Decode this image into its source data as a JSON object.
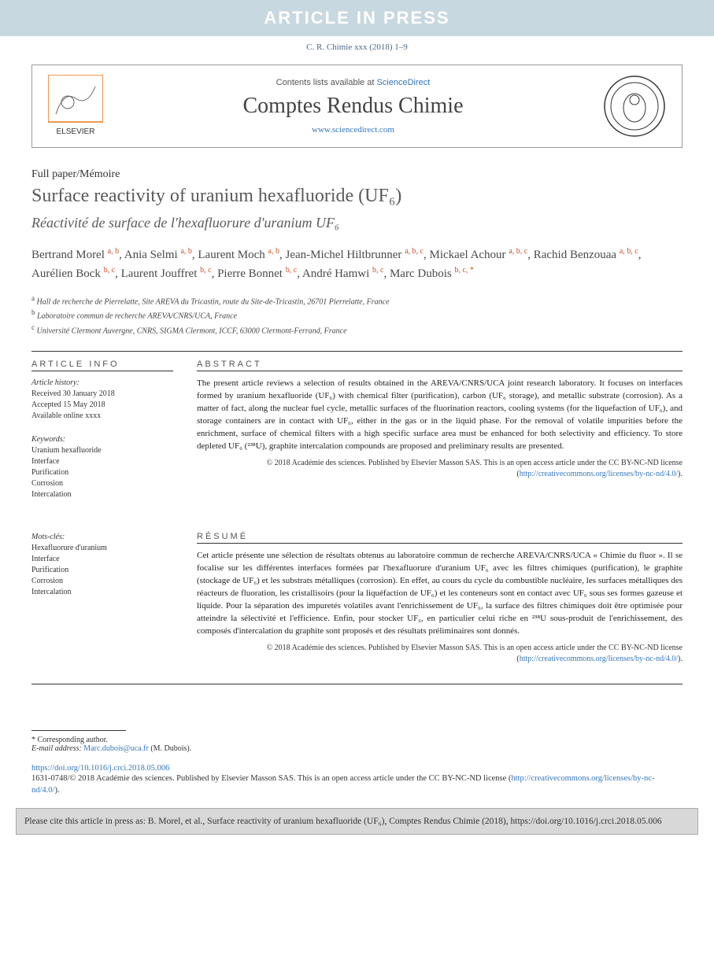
{
  "banner": "ARTICLE IN PRESS",
  "citation_line": "C. R. Chimie xxx (2018) 1–9",
  "header": {
    "contents_prefix": "Contents lists available at ",
    "contents_link": "ScienceDirect",
    "journal_name": "Comptes Rendus Chimie",
    "url": "www.sciencedirect.com"
  },
  "article_type": "Full paper/Mémoire",
  "title_en": "Surface reactivity of uranium hexafluoride (UF₆)",
  "title_fr": "Réactivité de surface de l'hexafluorure d'uranium UF₆",
  "authors": [
    {
      "name": "Bertrand Morel",
      "aff": "a, b"
    },
    {
      "name": "Ania Selmi",
      "aff": "a, b"
    },
    {
      "name": "Laurent Moch",
      "aff": "a, b"
    },
    {
      "name": "Jean-Michel Hiltbrunner",
      "aff": "a, b, c"
    },
    {
      "name": "Mickael Achour",
      "aff": "a, b, c"
    },
    {
      "name": "Rachid Benzouaa",
      "aff": "a, b, c"
    },
    {
      "name": "Aurélien Bock",
      "aff": "b, c"
    },
    {
      "name": "Laurent Jouffret",
      "aff": "b, c"
    },
    {
      "name": "Pierre Bonnet",
      "aff": "b, c"
    },
    {
      "name": "André Hamwi",
      "aff": "b, c"
    },
    {
      "name": "Marc Dubois",
      "aff": "b, c, *"
    }
  ],
  "affiliations": [
    {
      "marker": "a",
      "text": "Hall de recherche de Pierrelatte, Site AREVA du Tricastin, route du Site-de-Tricastin, 26701 Pierrelatte, France"
    },
    {
      "marker": "b",
      "text": "Laboratoire commun de recherche AREVA/CNRS/UCA, France"
    },
    {
      "marker": "c",
      "text": "Université Clermont Auvergne, CNRS, SIGMA Clermont, ICCF, 63000 Clermont-Ferrand, France"
    }
  ],
  "article_info": {
    "header": "ARTICLE INFO",
    "history_label": "Article history:",
    "received": "Received 30 January 2018",
    "accepted": "Accepted 15 May 2018",
    "online": "Available online xxxx",
    "keywords_label": "Keywords:",
    "keywords": [
      "Uranium hexafluoride",
      "Interface",
      "Purification",
      "Corrosion",
      "Intercalation"
    ],
    "mots_label": "Mots-clés:",
    "mots": [
      "Hexafluorure d'uranium",
      "Interface",
      "Purification",
      "Corrosion",
      "Intercalation"
    ]
  },
  "abstract": {
    "header": "ABSTRACT",
    "text": "The present article reviews a selection of results obtained in the AREVA/CNRS/UCA joint research laboratory. It focuses on interfaces formed by uranium hexafluoride (UF₆) with chemical filter (purification), carbon (UF₆ storage), and metallic substrate (corrosion). As a matter of fact, along the nuclear fuel cycle, metallic surfaces of the fluorination reactors, cooling systems (for the liquefaction of UF₆), and storage containers are in contact with UF₆, either in the gas or in the liquid phase. For the removal of volatile impurities before the enrichment, surface of chemical filters with a high specific surface area must be enhanced for both selectivity and efficiency. To store depleted UF₆ (²³⁸U), graphite intercalation compounds are proposed and preliminary results are presented.",
    "copyright": "© 2018 Académie des sciences. Published by Elsevier Masson SAS. This is an open access article under the CC BY-NC-ND license (",
    "license_url": "http://creativecommons.org/licenses/by-nc-nd/4.0/",
    "copyright_close": ")."
  },
  "resume": {
    "header": "RÉSUMÉ",
    "text": "Cet article présente une sélection de résultats obtenus au laboratoire commun de recherche AREVA/CNRS/UCA « Chimie du fluor ». Il se focalise sur les différentes interfaces formées par l'hexafluorure d'uranium UF₆ avec les filtres chimiques (purification), le graphite (stockage de UF₆) et les substrats métalliques (corrosion). En effet, au cours du cycle du combustible nucléaire, les surfaces métalliques des réacteurs de fluoration, les cristallisoirs (pour la liquéfaction de UF₆) et les conteneurs sont en contact avec UF₆ sous ses formes gazeuse et liquide. Pour la séparation des impuretés volatiles avant l'enrichissement de UF₆, la surface des filtres chimiques doit être optimisée pour atteindre la sélectivité et l'efficience. Enfin, pour stocker UF₆, en particulier celui riche en ²³⁸U sous-produit de l'enrichissement, des composés d'intercalation du graphite sont proposés et des résultats préliminaires sont donnés.",
    "copyright": "© 2018 Académie des sciences. Published by Elsevier Masson SAS. This is an open access article under the CC BY-NC-ND license (",
    "license_url": "http://creativecommons.org/licenses/by-nc-nd/4.0/",
    "copyright_close": ")."
  },
  "footer": {
    "corresponding": "* Corresponding author.",
    "email_label": "E-mail address:",
    "email": "Marc.dubois@uca.fr",
    "email_person": "(M. Dubois).",
    "doi": "https://doi.org/10.1016/j.crci.2018.05.006",
    "issn": "1631-0748/© 2018 Académie des sciences. Published by Elsevier Masson SAS. This is an open access article under the CC BY-NC-ND license (",
    "license_url": "http://creativecommons.org/licenses/by-nc-nd/4.0/",
    "issn_close": ")."
  },
  "cite_box": "Please cite this article in press as: B. Morel, et al., Surface reactivity of uranium hexafluoride (UF₆), Comptes Rendus Chimie (2018), https://doi.org/10.1016/j.crci.2018.05.006",
  "colors": {
    "banner_bg": "#c8d8e0",
    "link": "#3577b8",
    "sup": "#c85028",
    "cite_bg": "#d8d8d8"
  }
}
